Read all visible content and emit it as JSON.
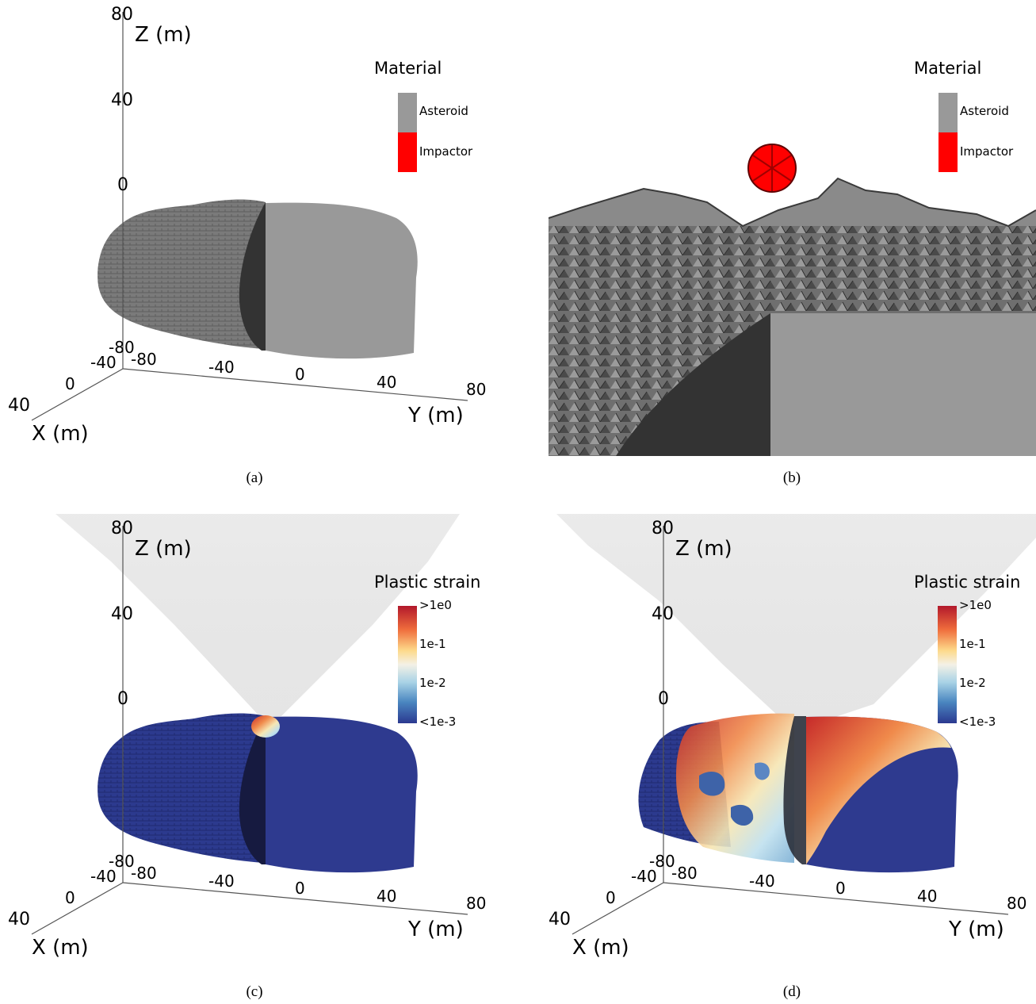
{
  "panels": [
    {
      "id": "a",
      "caption": "(a)",
      "legend": {
        "title": "Material",
        "entries": [
          "Asteroid",
          "Impactor"
        ]
      },
      "axes": {
        "x_label": "X (m)",
        "y_label": "Y (m)",
        "z_label": "Z (m)",
        "x_ticks": [
          "-80",
          "-40",
          "0",
          "40"
        ],
        "y_ticks": [
          "-80",
          "-40",
          "0",
          "40",
          "80"
        ],
        "z_ticks": [
          "80",
          "40",
          "0"
        ]
      }
    },
    {
      "id": "b",
      "caption": "(b)",
      "legend": {
        "title": "Material",
        "entries": [
          "Asteroid",
          "Impactor"
        ]
      }
    },
    {
      "id": "c",
      "caption": "(c)",
      "legend": {
        "title": "Plastic strain",
        "entries": [
          ">1e0",
          "1e-1",
          "1e-2",
          "<1e-3"
        ]
      },
      "axes": {
        "x_label": "X (m)",
        "y_label": "Y (m)",
        "z_label": "Z (m)",
        "x_ticks": [
          "-80",
          "-40",
          "0",
          "40"
        ],
        "y_ticks": [
          "-80",
          "-40",
          "0",
          "40",
          "80"
        ],
        "z_ticks": [
          "80",
          "40",
          "0"
        ]
      }
    },
    {
      "id": "d",
      "caption": "(d)",
      "legend": {
        "title": "Plastic strain",
        "entries": [
          ">1e0",
          "1e-1",
          "1e-2",
          "<1e-3"
        ]
      },
      "axes": {
        "x_label": "X (m)",
        "y_label": "Y (m)",
        "z_label": "Z (m)",
        "x_ticks": [
          "-80",
          "-40",
          "0",
          "40"
        ],
        "y_ticks": [
          "-80",
          "-40",
          "0",
          "40",
          "80"
        ],
        "z_ticks": [
          "80",
          "40",
          "0"
        ]
      }
    }
  ],
  "colors": {
    "asteroid": "#999999",
    "impactor": "#ff0000",
    "strain_low": "#2b3990",
    "strain_high": "#b2182b"
  }
}
